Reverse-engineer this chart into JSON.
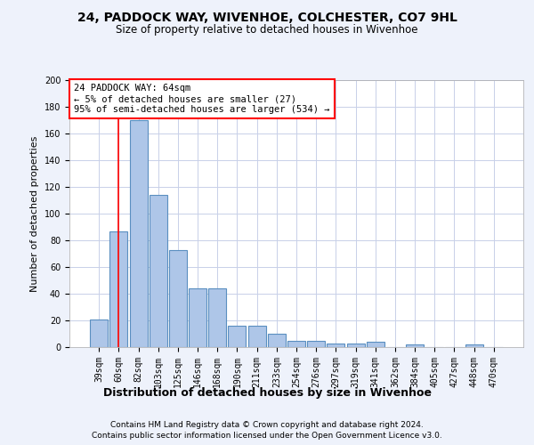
{
  "title1": "24, PADDOCK WAY, WIVENHOE, COLCHESTER, CO7 9HL",
  "title2": "Size of property relative to detached houses in Wivenhoe",
  "xlabel": "Distribution of detached houses by size in Wivenhoe",
  "ylabel": "Number of detached properties",
  "categories": [
    "39sqm",
    "60sqm",
    "82sqm",
    "103sqm",
    "125sqm",
    "146sqm",
    "168sqm",
    "190sqm",
    "211sqm",
    "233sqm",
    "254sqm",
    "276sqm",
    "297sqm",
    "319sqm",
    "341sqm",
    "362sqm",
    "384sqm",
    "405sqm",
    "427sqm",
    "448sqm",
    "470sqm"
  ],
  "values": [
    21,
    87,
    170,
    114,
    73,
    44,
    44,
    16,
    16,
    10,
    5,
    5,
    3,
    3,
    4,
    0,
    2,
    0,
    0,
    2,
    0
  ],
  "bar_color": "#aec6e8",
  "bar_edge_color": "#5a8fc0",
  "annotation_text_line1": "24 PADDOCK WAY: 64sqm",
  "annotation_text_line2": "← 5% of detached houses are smaller (27)",
  "annotation_text_line3": "95% of semi-detached houses are larger (534) →",
  "annotation_box_color": "white",
  "annotation_box_edge_color": "red",
  "red_line_x": 1.0,
  "footnote1": "Contains HM Land Registry data © Crown copyright and database right 2024.",
  "footnote2": "Contains public sector information licensed under the Open Government Licence v3.0.",
  "bg_color": "#eef2fb",
  "plot_bg_color": "white",
  "ylim": [
    0,
    200
  ],
  "yticks": [
    0,
    20,
    40,
    60,
    80,
    100,
    120,
    140,
    160,
    180,
    200
  ],
  "grid_color": "#c8d0e8",
  "title1_fontsize": 10,
  "title2_fontsize": 8.5,
  "xlabel_fontsize": 9,
  "ylabel_fontsize": 8,
  "tick_fontsize": 7,
  "annot_fontsize": 7.5,
  "footnote_fontsize": 6.5
}
